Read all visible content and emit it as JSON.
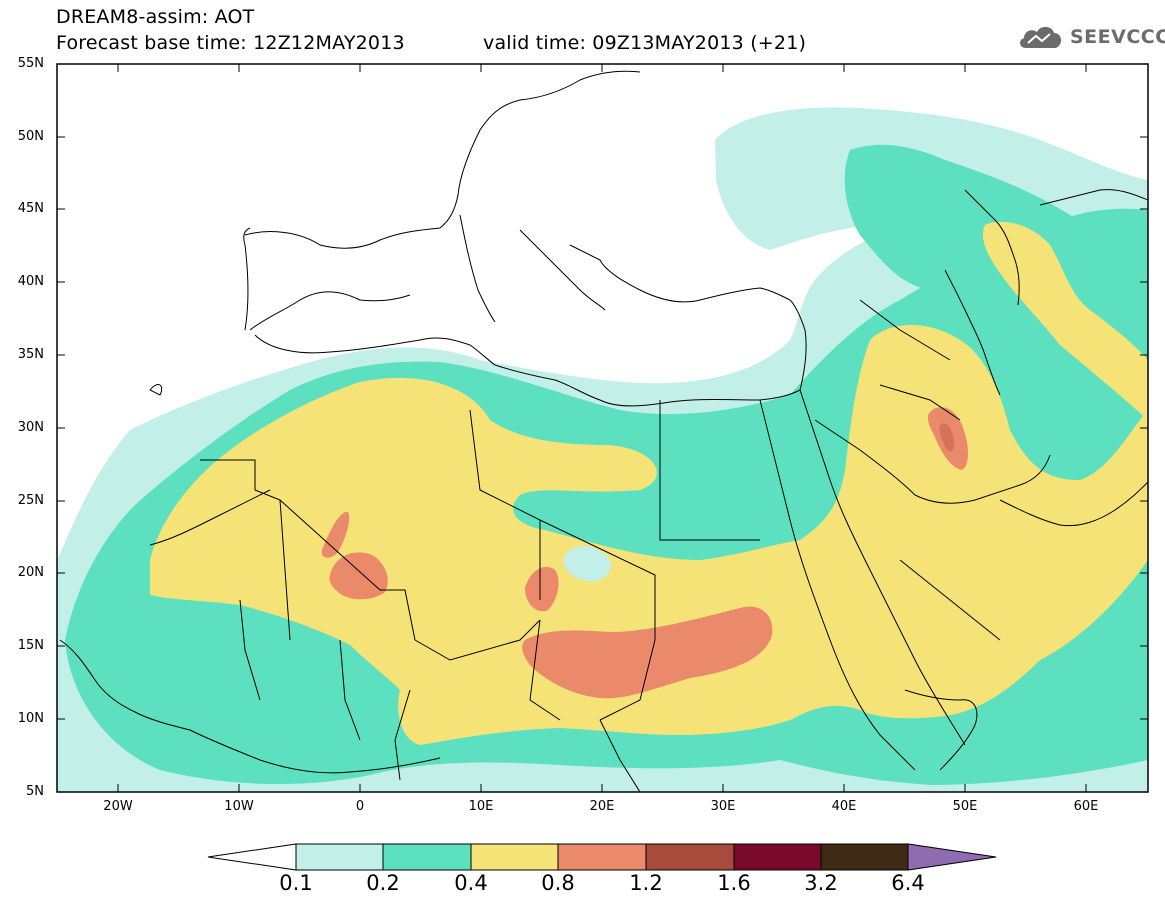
{
  "header": {
    "title_line1": "DREAM8-assim: AOT",
    "title_line2": "Forecast base time: 12Z12MAY2013",
    "valid_time": "valid time: 09Z13MAY2013 (+21)",
    "logo_text": "SEEVCCC",
    "logo_icon": "cloud-icon"
  },
  "map": {
    "lat_labels": [
      "55N",
      "50N",
      "45N",
      "40N",
      "35N",
      "30N",
      "25N",
      "20N",
      "15N",
      "10N",
      "5N"
    ],
    "lon_labels": [
      "20W",
      "10W",
      "0",
      "10E",
      "20E",
      "30E",
      "40E",
      "50E",
      "60E"
    ],
    "extent": {
      "lon_min": -25,
      "lon_max": 65,
      "lat_min": 5,
      "lat_max": 55
    }
  },
  "colorbar": {
    "levels": [
      "0.1",
      "0.2",
      "0.4",
      "0.8",
      "1.2",
      "1.6",
      "3.2",
      "6.4"
    ],
    "colors": [
      "#c2f0e9",
      "#5ce0bf",
      "#f5e378",
      "#ea8a6a",
      "#a84a3c",
      "#7a0a2a",
      "#3f2a16"
    ],
    "under_color": "#ffffff",
    "over_color": "#8f6bb0"
  },
  "colors": {
    "aot_0_1": "#c2f0e9",
    "aot_0_2": "#5ce0bf",
    "aot_0_4": "#f5e378",
    "aot_0_8": "#ea8a6a",
    "aot_1_2": "#a84a3c"
  }
}
